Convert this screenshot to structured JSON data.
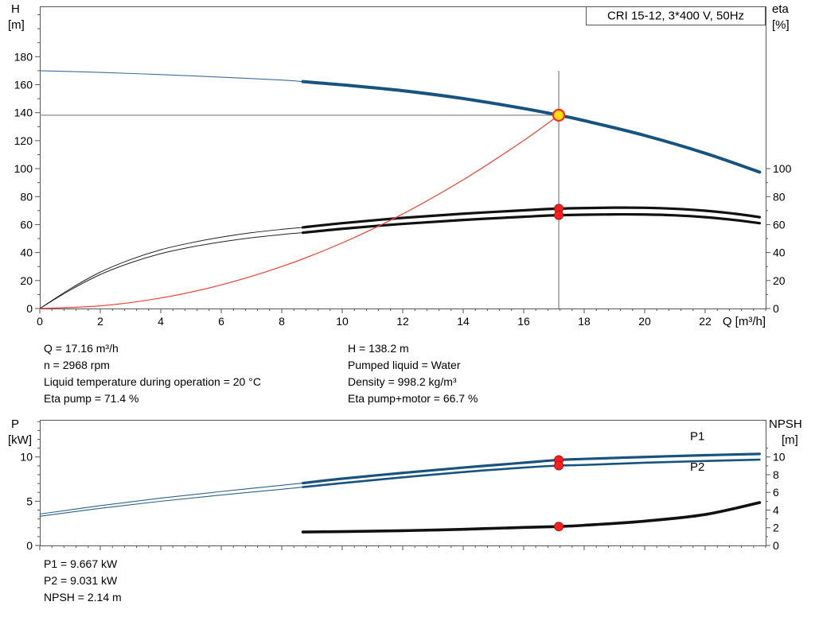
{
  "chart_data": [
    {
      "type": "line",
      "title": "CRI 15-12, 3*400 V, 50Hz",
      "xlabel": "Q [m³/h]",
      "ylabel_left": [
        "H",
        "[m]"
      ],
      "ylabel_right": [
        "eta",
        "[%]"
      ],
      "xlim": [
        0,
        24
      ],
      "ylim": [
        0,
        216
      ],
      "x_axis": {
        "ticks": [
          0,
          2,
          4,
          6,
          8,
          10,
          12,
          14,
          16,
          18,
          20,
          22
        ],
        "labels": [
          "0",
          "2",
          "4",
          "6",
          "8",
          "10",
          "12",
          "14",
          "16",
          "18",
          "20",
          "22"
        ],
        "minor_step": 0.4
      },
      "y_left": {
        "ticks": [
          0,
          20,
          40,
          60,
          80,
          100,
          120,
          140,
          160,
          180
        ],
        "labels": [
          "0",
          "20",
          "40",
          "60",
          "80",
          "100",
          "120",
          "140",
          "160",
          "180"
        ],
        "minor_step": 10,
        "minor_max": 215
      },
      "y_right": {
        "ticks": [
          0,
          20,
          40,
          60,
          80,
          100
        ],
        "labels": [
          "0",
          "20",
          "40",
          "60",
          "80",
          "100"
        ],
        "minor_step": 10,
        "minor_max": 100
      },
      "crosshairs": [
        {
          "x1": 17.16,
          "y1": 0,
          "x2": 17.16,
          "y2": 170,
          "color": "#8a8a8a",
          "width": 1.3
        },
        {
          "x1": 0,
          "y1": 138.2,
          "x2": 17.16,
          "y2": 138.2,
          "color": "#8a8a8a",
          "width": 1.3
        }
      ],
      "series": [
        {
          "name": "head-curve-extrapolated",
          "color": "#3d6d96",
          "width": 1.1,
          "points": [
            [
              0,
              170
            ],
            [
              2,
              168.8
            ],
            [
              4,
              167.2
            ],
            [
              6,
              165.4
            ],
            [
              8,
              163.3
            ],
            [
              8.7,
              162.2
            ]
          ]
        },
        {
          "name": "head-curve",
          "color": "#17537f",
          "width": 4,
          "points": [
            [
              8.7,
              162.2
            ],
            [
              10,
              159.9
            ],
            [
              12,
              155.7
            ],
            [
              14,
              150.1
            ],
            [
              16,
              143.0
            ],
            [
              17.16,
              138.2
            ],
            [
              18,
              134.3
            ],
            [
              20,
              123.7
            ],
            [
              22,
              111.0
            ],
            [
              23.8,
              97.5
            ]
          ]
        },
        {
          "name": "eta-pump-extrapolated",
          "color": "#222222",
          "width": 1,
          "points": [
            [
              0,
              0
            ],
            [
              1,
              14
            ],
            [
              2,
              26
            ],
            [
              3,
              35
            ],
            [
              4,
              42
            ],
            [
              5,
              47
            ],
            [
              6,
              51
            ],
            [
              7,
              54.2
            ],
            [
              8,
              56.6
            ],
            [
              8.7,
              58
            ]
          ]
        },
        {
          "name": "eta-pump-curve",
          "color": "#111111",
          "width": 3.2,
          "points": [
            [
              8.7,
              58
            ],
            [
              10,
              61
            ],
            [
              12,
              64.8
            ],
            [
              14,
              67.8
            ],
            [
              16,
              70.2
            ],
            [
              17.16,
              71.4
            ],
            [
              19,
              72.1
            ],
            [
              20,
              72
            ],
            [
              21,
              71.3
            ],
            [
              22,
              69.9
            ],
            [
              23,
              67.7
            ],
            [
              23.8,
              65.3
            ]
          ]
        },
        {
          "name": "eta-pump-motor-extrapolated",
          "color": "#222222",
          "width": 1,
          "points": [
            [
              0,
              0
            ],
            [
              1,
              13.1
            ],
            [
              2,
              24.3
            ],
            [
              3,
              32.7
            ],
            [
              4,
              39.2
            ],
            [
              5,
              43.9
            ],
            [
              6,
              47.6
            ],
            [
              7,
              50.6
            ],
            [
              8,
              52.9
            ],
            [
              8.7,
              54.2
            ]
          ]
        },
        {
          "name": "eta-pump-motor-curve",
          "color": "#111111",
          "width": 3.2,
          "points": [
            [
              8.7,
              54.2
            ],
            [
              10,
              57
            ],
            [
              12,
              60.5
            ],
            [
              14,
              63.3
            ],
            [
              16,
              65.6
            ],
            [
              17.16,
              66.7
            ],
            [
              19,
              67.3
            ],
            [
              20,
              67.2
            ],
            [
              21,
              66.6
            ],
            [
              22,
              65.3
            ],
            [
              23,
              63.2
            ],
            [
              23.8,
              61.0
            ]
          ]
        },
        {
          "name": "system-curve",
          "color": "#ef4135",
          "width": 1.2,
          "points": [
            [
              0,
              0
            ],
            [
              2,
              1.9
            ],
            [
              4,
              7.5
            ],
            [
              6,
              16.9
            ],
            [
              8,
              30
            ],
            [
              10,
              46.9
            ],
            [
              12,
              67.6
            ],
            [
              14,
              92
            ],
            [
              16,
              120.1
            ],
            [
              17.16,
              138.2
            ]
          ]
        }
      ],
      "markers": [
        {
          "name": "eta-pump-operating-dot",
          "x": 17.16,
          "y": 71.4,
          "r": 5.5,
          "fill": "#ff1f1f",
          "stroke": "#a31515",
          "width": 1,
          "interactable": false
        },
        {
          "name": "eta-pump-motor-operating-dot",
          "x": 17.16,
          "y": 66.7,
          "r": 5.5,
          "fill": "#ff1f1f",
          "stroke": "#a31515",
          "width": 1,
          "interactable": false
        },
        {
          "name": "duty-point-marker",
          "x": 17.16,
          "y": 138.2,
          "r": 7,
          "fill": "#ffdf14",
          "stroke": "#ff2a1a",
          "width": 2.2,
          "interactable": true
        }
      ],
      "curve_labels": []
    },
    {
      "type": "line",
      "title": "",
      "xlabel": "",
      "ylabel_left": [
        "P",
        "[kW]"
      ],
      "ylabel_right": [
        "NPSH",
        "[m]"
      ],
      "xlim": [
        0,
        24
      ],
      "ylim": [
        0,
        14.2
      ],
      "x_axis": {
        "ticks": [
          0,
          2,
          4,
          6,
          8,
          10,
          12,
          14,
          16,
          18,
          20,
          22
        ],
        "labels": null,
        "minor_step": 0.4
      },
      "y_left": {
        "ticks": [
          0,
          5,
          10
        ],
        "labels": [
          "0",
          "5",
          "10"
        ],
        "minor_step": 1,
        "minor_max": 14
      },
      "y_right": {
        "ticks": [
          0,
          2,
          4,
          6,
          8,
          10
        ],
        "labels": [
          "0",
          "2",
          "4",
          "6",
          "8",
          "10"
        ],
        "minor_step": 1,
        "minor_max": 11
      },
      "crosshairs": [],
      "series": [
        {
          "name": "p1-curve-extrapolated",
          "color": "#2e6289",
          "width": 1.1,
          "points": [
            [
              0,
              3.55
            ],
            [
              2,
              4.5
            ],
            [
              4,
              5.35
            ],
            [
              6,
              6.1
            ],
            [
              8,
              6.8
            ],
            [
              8.7,
              7.05
            ]
          ]
        },
        {
          "name": "p1-curve",
          "color": "#17537f",
          "width": 3.2,
          "points": [
            [
              8.7,
              7.05
            ],
            [
              10,
              7.55
            ],
            [
              12,
              8.2
            ],
            [
              14,
              8.8
            ],
            [
              16,
              9.35
            ],
            [
              17.16,
              9.667
            ],
            [
              18,
              9.78
            ],
            [
              20,
              10.0
            ],
            [
              22,
              10.2
            ],
            [
              23.8,
              10.35
            ]
          ]
        },
        {
          "name": "p2-curve-extrapolated",
          "color": "#2e6289",
          "width": 1.1,
          "points": [
            [
              0,
              3.3
            ],
            [
              2,
              4.2
            ],
            [
              4,
              5.0
            ],
            [
              6,
              5.7
            ],
            [
              8,
              6.35
            ],
            [
              8.7,
              6.6
            ]
          ]
        },
        {
          "name": "p2-curve",
          "color": "#17537f",
          "width": 2.6,
          "points": [
            [
              8.7,
              6.6
            ],
            [
              10,
              7.05
            ],
            [
              12,
              7.7
            ],
            [
              14,
              8.3
            ],
            [
              16,
              8.8
            ],
            [
              17.16,
              9.031
            ],
            [
              18,
              9.1
            ],
            [
              20,
              9.35
            ],
            [
              22,
              9.55
            ],
            [
              23.8,
              9.7
            ]
          ]
        },
        {
          "name": "npsh-curve",
          "color": "#111111",
          "width": 3.6,
          "points": [
            [
              8.7,
              1.52
            ],
            [
              10,
              1.57
            ],
            [
              12,
              1.67
            ],
            [
              14,
              1.83
            ],
            [
              16,
              2.04
            ],
            [
              17.16,
              2.14
            ],
            [
              18,
              2.28
            ],
            [
              20,
              2.75
            ],
            [
              22,
              3.5
            ],
            [
              23.8,
              4.85
            ]
          ]
        }
      ],
      "markers": [
        {
          "name": "p1-operating-dot",
          "x": 17.16,
          "y": 9.667,
          "r": 5.5,
          "fill": "#ff1f1f",
          "stroke": "#a31515",
          "width": 1,
          "interactable": false
        },
        {
          "name": "p2-operating-dot",
          "x": 17.16,
          "y": 9.031,
          "r": 5.5,
          "fill": "#ff1f1f",
          "stroke": "#a31515",
          "width": 1,
          "interactable": false
        },
        {
          "name": "npsh-operating-dot",
          "x": 17.16,
          "y": 2.14,
          "r": 5.5,
          "fill": "#ff1f1f",
          "stroke": "#a31515",
          "width": 1,
          "interactable": false
        }
      ],
      "curve_labels": [
        {
          "text": "P1",
          "x": 21.5,
          "y": 11.9,
          "color": "#17537f"
        },
        {
          "text": "P2",
          "x": 21.5,
          "y": 8.45,
          "color": "#17537f"
        }
      ]
    }
  ],
  "info_top": {
    "left": [
      "Q = 17.16 m³/h",
      "n = 2968 rpm",
      "Liquid temperature during operation = 20 °C",
      "Eta pump = 71.4 %"
    ],
    "right": [
      "H = 138.2 m",
      "Pumped liquid = Water",
      "Density = 998.2 kg/m³",
      "Eta pump+motor = 66.7 %"
    ]
  },
  "info_bottom": [
    "P1 = 9.667 kW",
    "P2 = 9.031 kW",
    "NPSH = 2.14 m"
  ],
  "colors": {
    "curve_blue": "#17537f",
    "eta_black": "#111111",
    "system_red": "#ef4135",
    "dot_red": "#ff1f1f",
    "duty_yellow": "#ffdf14",
    "crosshair_gray": "#8a8a8a",
    "frame_gray": "#555555"
  }
}
